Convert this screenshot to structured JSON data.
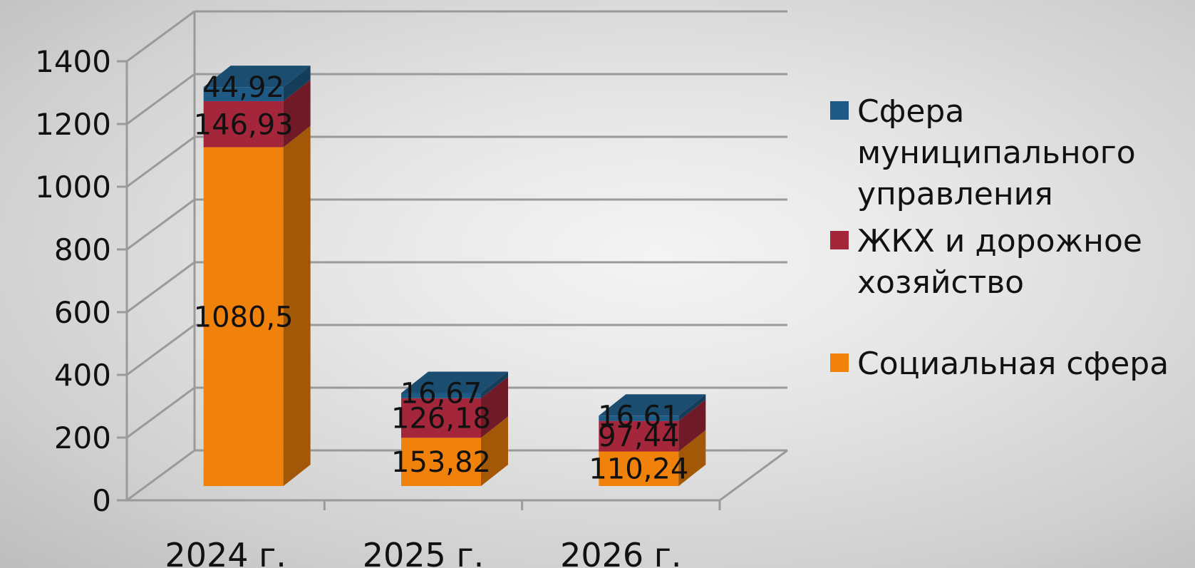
{
  "chart_data": {
    "type": "bar",
    "stacked": true,
    "style": "3d",
    "title": "",
    "xlabel": "",
    "ylabel": "",
    "categories": [
      "2024 г.",
      "2025 г.",
      "2026 г."
    ],
    "ylim": [
      0,
      1400
    ],
    "yticks": [
      "0",
      "200",
      "400",
      "600",
      "800",
      "1000",
      "1200",
      "1400"
    ],
    "grid": true,
    "legend_position": "right",
    "series": [
      {
        "name": "Социальная сфера",
        "color": "#f0810a",
        "values": [
          1080.5,
          153.82,
          110.24
        ],
        "labels": [
          "1080,5",
          "153,82",
          "110,24"
        ]
      },
      {
        "name": "ЖКХ и дорожное хозяйство",
        "color": "#a4263a",
        "values": [
          146.93,
          126.18,
          97.44
        ],
        "labels": [
          "146,93",
          "126,18",
          "97,44"
        ]
      },
      {
        "name": "Сфера муниципального управления",
        "color": "#1e5a84",
        "values": [
          44.92,
          16.67,
          16.61
        ],
        "labels": [
          "44,92",
          "16,67",
          "16,61"
        ]
      }
    ],
    "legend": [
      {
        "lines": [
          "Сфера",
          "муниципального",
          "управления"
        ],
        "color": "#1e5a84"
      },
      {
        "lines": [
          "ЖКХ и дорожное",
          "хозяйство"
        ],
        "color": "#a4263a"
      },
      {
        "lines": [
          "Социальная сфера"
        ],
        "color": "#f0810a"
      }
    ]
  }
}
